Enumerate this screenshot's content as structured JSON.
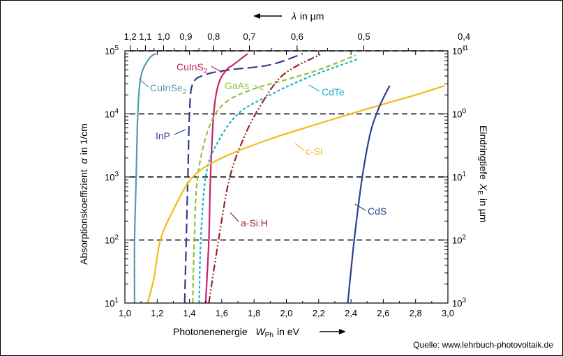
{
  "chart_data": {
    "type": "line",
    "xlabel": "Photonenenergie  W_Ph in eV",
    "xlabel_main": "Photonenenergie",
    "xlabel_sym": "W",
    "xlabel_sub": "Ph",
    "xlabel_unit": "in eV",
    "ylabel": "Absorptionskoeffizient  α in 1/cm",
    "ylabel_text": "Absorptionskoeffizient",
    "ylabel_sym": "α",
    "ylabel_unit": "in 1/cm",
    "top_label": "λ in µm",
    "top_label_sym": "λ",
    "top_label_unit": "in µm",
    "right_label": "Eindringtiefe X_E in µm",
    "right_label_text": "Eindringtiefe",
    "right_label_sym": "X",
    "right_label_sub": "E",
    "right_label_unit": "in µm",
    "xlim": [
      1.0,
      3.0
    ],
    "ylim": [
      10,
      100000
    ],
    "y_scale": "log",
    "x_ticks": [
      "1,0",
      "1,2",
      "1,4",
      "1,6",
      "1,8",
      "2,0",
      "2,2",
      "2,4",
      "2,6",
      "2,8",
      "3,0"
    ],
    "x_tick_values": [
      1.0,
      1.2,
      1.4,
      1.6,
      1.8,
      2.0,
      2.2,
      2.4,
      2.6,
      2.8,
      3.0
    ],
    "top_ticks": [
      "1,2",
      "1,1",
      "1,0",
      "0,9",
      "0,8",
      "0,7",
      "0,6",
      "0,5",
      "0,4"
    ],
    "top_tick_values": [
      1.2,
      1.1,
      1.0,
      0.9,
      0.8,
      0.7,
      0.6,
      0.5,
      0.4
    ],
    "y_ticks": [
      {
        "mant": "10",
        "exp": "1",
        "value": 10
      },
      {
        "mant": "10",
        "exp": "2",
        "value": 100
      },
      {
        "mant": "10",
        "exp": "3",
        "value": 1000
      },
      {
        "mant": "10",
        "exp": "4",
        "value": 10000
      },
      {
        "mant": "10",
        "exp": "5",
        "value": 100000
      }
    ],
    "right_ticks": [
      {
        "mant": "10",
        "exp": "3",
        "value": 10
      },
      {
        "mant": "10",
        "exp": "2",
        "value": 100
      },
      {
        "mant": "10",
        "exp": "1",
        "value": 1000
      },
      {
        "mant": "10",
        "exp": "0",
        "value": 10000
      },
      {
        "mant": "10",
        "exp": "-1",
        "value": 100000
      }
    ],
    "series": [
      {
        "name": "CuInSe",
        "sub": "2",
        "color": "#4f9ea6",
        "dash": "solid",
        "points": [
          [
            1.06,
            10
          ],
          [
            1.06,
            100
          ],
          [
            1.07,
            1000
          ],
          [
            1.08,
            10000
          ],
          [
            1.1,
            40000
          ],
          [
            1.15,
            75000
          ],
          [
            1.19,
            90000
          ]
        ]
      },
      {
        "name": "InP",
        "color": "#2e3f8f",
        "dash": "long",
        "points": [
          [
            1.37,
            10
          ],
          [
            1.38,
            100
          ],
          [
            1.39,
            1000
          ],
          [
            1.4,
            10000
          ],
          [
            1.42,
            30000
          ],
          [
            1.5,
            42000
          ],
          [
            1.65,
            50000
          ],
          [
            1.9,
            60000
          ],
          [
            2.1,
            90000
          ]
        ]
      },
      {
        "name": "CuInS",
        "sub": "2",
        "color": "#c8216e",
        "dash": "solid",
        "points": [
          [
            1.5,
            10
          ],
          [
            1.52,
            100
          ],
          [
            1.53,
            1000
          ],
          [
            1.55,
            10000
          ],
          [
            1.58,
            30000
          ],
          [
            1.63,
            50000
          ],
          [
            1.67,
            60000
          ],
          [
            1.76,
            90000
          ]
        ]
      },
      {
        "name": "GaAs",
        "color": "#8cc43f",
        "dash": "medium",
        "points": [
          [
            1.42,
            10
          ],
          [
            1.43,
            100
          ],
          [
            1.45,
            1000
          ],
          [
            1.52,
            6000
          ],
          [
            1.62,
            15000
          ],
          [
            1.8,
            25000
          ],
          [
            2.0,
            35000
          ],
          [
            2.2,
            50000
          ],
          [
            2.43,
            85000
          ]
        ]
      },
      {
        "name": "CdTe",
        "color": "#1ab2cc",
        "dash": "short",
        "points": [
          [
            1.46,
            10
          ],
          [
            1.47,
            100
          ],
          [
            1.5,
            1000
          ],
          [
            1.56,
            3000
          ],
          [
            1.7,
            10000
          ],
          [
            1.9,
            20000
          ],
          [
            2.1,
            35000
          ],
          [
            2.3,
            55000
          ],
          [
            2.45,
            75000
          ]
        ]
      },
      {
        "name": "a-Si:H",
        "color": "#9c2222",
        "dash": "dashdotdot",
        "points": [
          [
            1.52,
            10
          ],
          [
            1.58,
            100
          ],
          [
            1.65,
            1000
          ],
          [
            1.75,
            5000
          ],
          [
            1.85,
            15000
          ],
          [
            1.95,
            35000
          ],
          [
            2.05,
            55000
          ],
          [
            2.22,
            90000
          ]
        ]
      },
      {
        "name": "c-Si",
        "color": "#f2bb14",
        "dash": "solid",
        "points": [
          [
            1.14,
            10
          ],
          [
            1.18,
            25
          ],
          [
            1.22,
            100
          ],
          [
            1.3,
            300
          ],
          [
            1.42,
            1000
          ],
          [
            1.6,
            2000
          ],
          [
            1.9,
            4000
          ],
          [
            2.2,
            7000
          ],
          [
            2.5,
            12000
          ],
          [
            2.8,
            20000
          ],
          [
            2.98,
            28000
          ]
        ]
      },
      {
        "name": "CdS",
        "color": "#2e3f8f",
        "dash": "solid",
        "points": [
          [
            2.38,
            10
          ],
          [
            2.42,
            100
          ],
          [
            2.47,
            1000
          ],
          [
            2.52,
            5000
          ],
          [
            2.57,
            12000
          ],
          [
            2.61,
            20000
          ],
          [
            2.64,
            28000
          ]
        ]
      }
    ],
    "annotations": [
      "Quelle: www.lehrbuch-photovoltaik.de"
    ],
    "grid": "dashed horizontal at 10^2, 10^3, 10^4, 10^5",
    "legend": "inline labels"
  }
}
